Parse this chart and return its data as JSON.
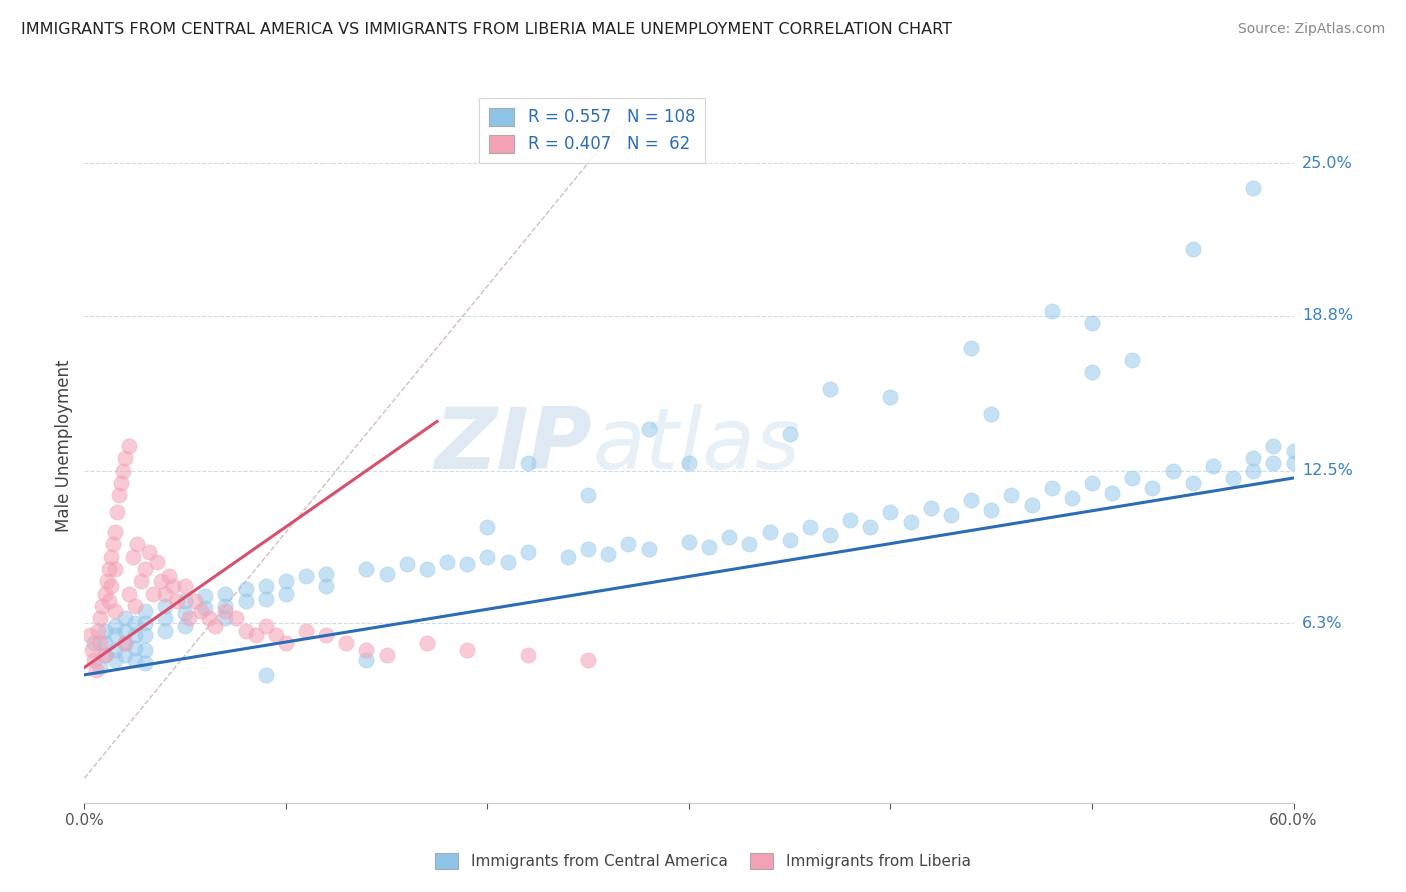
{
  "title": "IMMIGRANTS FROM CENTRAL AMERICA VS IMMIGRANTS FROM LIBERIA MALE UNEMPLOYMENT CORRELATION CHART",
  "source": "Source: ZipAtlas.com",
  "xlabel_blue": "Immigrants from Central America",
  "xlabel_pink": "Immigrants from Liberia",
  "ylabel": "Male Unemployment",
  "legend_blue_r": "0.557",
  "legend_blue_n": "108",
  "legend_pink_r": "0.407",
  "legend_pink_n": "62",
  "xlim": [
    0.0,
    0.6
  ],
  "ylim": [
    -0.01,
    0.28
  ],
  "yticks": [
    0.063,
    0.125,
    0.188,
    0.25
  ],
  "ytick_labels": [
    "6.3%",
    "12.5%",
    "18.8%",
    "25.0%"
  ],
  "background_color": "#ffffff",
  "watermark_zip": "ZIP",
  "watermark_atlas": "atlas",
  "blue_color": "#8ec4e8",
  "pink_color": "#f4a0b5",
  "blue_line_color": "#2b6db5",
  "pink_line_color": "#d94f6e",
  "ref_line_color": "#ccb8b8",
  "blue_scatter_x": [
    0.005,
    0.008,
    0.01,
    0.01,
    0.01,
    0.015,
    0.015,
    0.015,
    0.015,
    0.02,
    0.02,
    0.02,
    0.02,
    0.025,
    0.025,
    0.025,
    0.025,
    0.03,
    0.03,
    0.03,
    0.03,
    0.03,
    0.04,
    0.04,
    0.04,
    0.05,
    0.05,
    0.05,
    0.06,
    0.06,
    0.07,
    0.07,
    0.07,
    0.08,
    0.08,
    0.09,
    0.09,
    0.1,
    0.1,
    0.11,
    0.12,
    0.12,
    0.14,
    0.15,
    0.16,
    0.17,
    0.18,
    0.19,
    0.2,
    0.21,
    0.22,
    0.24,
    0.25,
    0.26,
    0.27,
    0.28,
    0.3,
    0.31,
    0.32,
    0.33,
    0.34,
    0.35,
    0.36,
    0.37,
    0.38,
    0.39,
    0.4,
    0.41,
    0.42,
    0.43,
    0.44,
    0.45,
    0.46,
    0.47,
    0.48,
    0.49,
    0.5,
    0.51,
    0.52,
    0.53,
    0.54,
    0.55,
    0.56,
    0.57,
    0.58,
    0.58,
    0.59,
    0.59,
    0.6,
    0.6,
    0.5,
    0.45,
    0.48,
    0.52,
    0.4,
    0.35,
    0.3,
    0.25,
    0.2,
    0.55,
    0.58,
    0.5,
    0.44,
    0.37,
    0.28,
    0.22,
    0.14,
    0.09
  ],
  "blue_scatter_y": [
    0.055,
    0.045,
    0.06,
    0.055,
    0.05,
    0.062,
    0.058,
    0.052,
    0.048,
    0.065,
    0.06,
    0.055,
    0.05,
    0.063,
    0.058,
    0.053,
    0.048,
    0.068,
    0.063,
    0.058,
    0.052,
    0.047,
    0.07,
    0.065,
    0.06,
    0.072,
    0.067,
    0.062,
    0.074,
    0.069,
    0.075,
    0.07,
    0.065,
    0.077,
    0.072,
    0.078,
    0.073,
    0.08,
    0.075,
    0.082,
    0.083,
    0.078,
    0.085,
    0.083,
    0.087,
    0.085,
    0.088,
    0.087,
    0.09,
    0.088,
    0.092,
    0.09,
    0.093,
    0.091,
    0.095,
    0.093,
    0.096,
    0.094,
    0.098,
    0.095,
    0.1,
    0.097,
    0.102,
    0.099,
    0.105,
    0.102,
    0.108,
    0.104,
    0.11,
    0.107,
    0.113,
    0.109,
    0.115,
    0.111,
    0.118,
    0.114,
    0.12,
    0.116,
    0.122,
    0.118,
    0.125,
    0.12,
    0.127,
    0.122,
    0.13,
    0.125,
    0.135,
    0.128,
    0.133,
    0.128,
    0.165,
    0.148,
    0.19,
    0.17,
    0.155,
    0.14,
    0.128,
    0.115,
    0.102,
    0.215,
    0.24,
    0.185,
    0.175,
    0.158,
    0.142,
    0.128,
    0.048,
    0.042
  ],
  "pink_scatter_x": [
    0.003,
    0.004,
    0.005,
    0.006,
    0.007,
    0.008,
    0.008,
    0.009,
    0.01,
    0.01,
    0.011,
    0.012,
    0.012,
    0.013,
    0.013,
    0.014,
    0.015,
    0.015,
    0.015,
    0.016,
    0.017,
    0.018,
    0.019,
    0.02,
    0.02,
    0.022,
    0.022,
    0.024,
    0.025,
    0.026,
    0.028,
    0.03,
    0.032,
    0.034,
    0.036,
    0.038,
    0.04,
    0.042,
    0.044,
    0.046,
    0.05,
    0.052,
    0.055,
    0.058,
    0.062,
    0.065,
    0.07,
    0.075,
    0.08,
    0.085,
    0.09,
    0.095,
    0.1,
    0.11,
    0.12,
    0.13,
    0.14,
    0.15,
    0.17,
    0.19,
    0.22,
    0.25
  ],
  "pink_scatter_y": [
    0.058,
    0.052,
    0.048,
    0.044,
    0.06,
    0.065,
    0.055,
    0.07,
    0.075,
    0.05,
    0.08,
    0.085,
    0.072,
    0.09,
    0.078,
    0.095,
    0.1,
    0.068,
    0.085,
    0.108,
    0.115,
    0.12,
    0.125,
    0.13,
    0.055,
    0.135,
    0.075,
    0.09,
    0.07,
    0.095,
    0.08,
    0.085,
    0.092,
    0.075,
    0.088,
    0.08,
    0.075,
    0.082,
    0.078,
    0.072,
    0.078,
    0.065,
    0.072,
    0.068,
    0.065,
    0.062,
    0.068,
    0.065,
    0.06,
    0.058,
    0.062,
    0.058,
    0.055,
    0.06,
    0.058,
    0.055,
    0.052,
    0.05,
    0.055,
    0.052,
    0.05,
    0.048
  ],
  "blue_trend_x": [
    0.0,
    0.6
  ],
  "blue_trend_y": [
    0.042,
    0.122
  ],
  "pink_trend_x": [
    0.0,
    0.175
  ],
  "pink_trend_y": [
    0.045,
    0.145
  ],
  "ref_line_x": [
    0.0,
    0.265
  ],
  "ref_line_y": [
    0.0,
    0.265
  ]
}
